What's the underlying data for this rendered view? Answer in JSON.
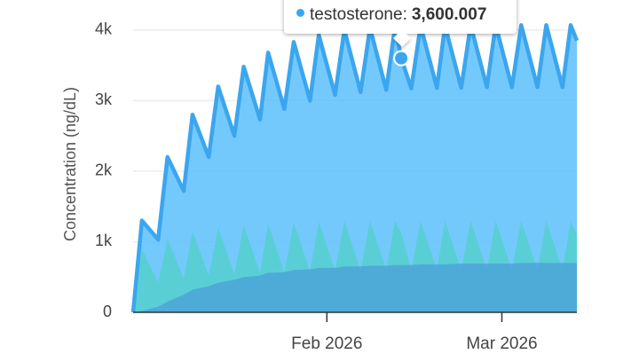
{
  "chart_data": {
    "type": "area",
    "ylabel": "Concentration (ng/dL)",
    "x": [
      0,
      1.4,
      4.0,
      5.5,
      8.1,
      9.5,
      12.1,
      13.6,
      16.2,
      17.7,
      20.3,
      21.6,
      24.2,
      25.7,
      28.3,
      29.7,
      32.3,
      33.8,
      36.4,
      37.9,
      40.5,
      41.9,
      42.9,
      44.5,
      46.0,
      48.6,
      49.9,
      52.5,
      54.0,
      56.6,
      58.0,
      60.6,
      62.1,
      64.7,
      66.1,
      68.7,
      70.0,
      71
    ],
    "xlim": [
      0,
      71
    ],
    "xticks": [
      {
        "value": 31,
        "label": "Feb 2026"
      },
      {
        "value": 59,
        "label": "Mar 2026"
      }
    ],
    "ylim": [
      0,
      4400
    ],
    "yticks": [
      0,
      {
        "value": 1000,
        "label": "1k"
      },
      {
        "value": 2000,
        "label": "2k"
      },
      {
        "value": 3000,
        "label": "3k"
      },
      {
        "value": 4000,
        "label": "4k"
      }
    ],
    "grid": true,
    "series": [
      {
        "name": "testosterone",
        "color": "#3ba6ee",
        "values": [
          0,
          1300,
          1030,
          2200,
          1720,
          2800,
          2200,
          3200,
          2500,
          3480,
          2730,
          3680,
          2880,
          3830,
          3000,
          3930,
          3080,
          4000,
          3120,
          4030,
          3150,
          4050,
          3600.007,
          3170,
          4060,
          3180,
          4060,
          3180,
          4070,
          3190,
          4070,
          3190,
          4070,
          3190,
          4070,
          3190,
          4070,
          3850
        ],
        "value_labels": [
          null,
          null,
          null,
          null,
          null,
          null,
          null,
          null,
          null,
          null,
          null,
          null,
          null,
          null,
          null,
          null,
          null,
          null,
          null,
          null,
          null,
          null,
          "3,600.007",
          null,
          null,
          null,
          null,
          null,
          null,
          null,
          null,
          null,
          null,
          null,
          null,
          null,
          null,
          null
        ]
      },
      {
        "color": "#4fd1c5",
        "values": [
          0,
          900,
          420,
          1050,
          480,
          1150,
          520,
          1200,
          540,
          1240,
          560,
          1260,
          570,
          1280,
          580,
          1290,
          590,
          1300,
          590,
          1300,
          600,
          1300,
          1130,
          600,
          1300,
          600,
          1300,
          600,
          1300,
          600,
          1300,
          600,
          1300,
          600,
          1300,
          600,
          1300,
          1100
        ]
      },
      {
        "color": "#4b9fd8",
        "values": [
          0,
          20,
          80,
          150,
          250,
          320,
          370,
          420,
          460,
          500,
          520,
          560,
          570,
          600,
          610,
          630,
          630,
          650,
          650,
          660,
          660,
          670,
          670,
          670,
          680,
          680,
          680,
          690,
          690,
          690,
          690,
          690,
          700,
          700,
          700,
          700,
          700,
          700
        ]
      }
    ]
  }
}
